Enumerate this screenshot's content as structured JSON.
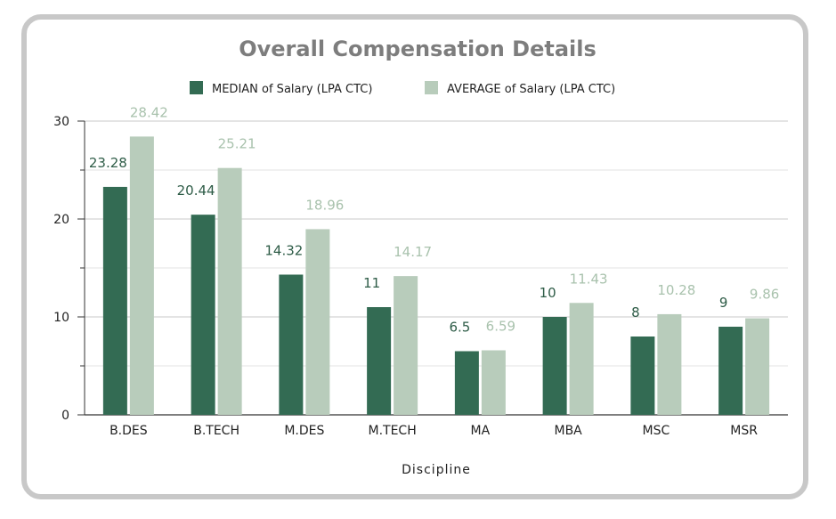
{
  "chart_data": {
    "type": "bar",
    "title": "Overall Compensation Details",
    "xlabel": "Discipline",
    "ylabel": "",
    "ylim": [
      0,
      30
    ],
    "yticks": [
      0,
      10,
      20,
      30
    ],
    "grid": true,
    "legend_position": "top",
    "categories": [
      "B.DES",
      "B.TECH",
      "M.DES",
      "M.TECH",
      "MA",
      "MBA",
      "MSC",
      "MSR"
    ],
    "series": [
      {
        "name": "MEDIAN of Salary (LPA CTC)",
        "color": "#336b53",
        "label_color": "#2e5c47",
        "values": [
          23.28,
          20.44,
          14.32,
          11,
          6.5,
          10,
          8,
          9
        ],
        "labels": [
          "23.28",
          "20.44",
          "14.32",
          "11",
          "6.5",
          "10",
          "8",
          "9"
        ]
      },
      {
        "name": "AVERAGE of Salary (LPA CTC)",
        "color": "#b8ccbb",
        "label_color": "#a9c2ad",
        "values": [
          28.42,
          25.21,
          18.96,
          14.17,
          6.59,
          11.43,
          10.28,
          9.86
        ],
        "labels": [
          "28.42",
          "25.21",
          "18.96",
          "14.17",
          "6.59",
          "11.43",
          "10.28",
          "9.86"
        ]
      }
    ]
  }
}
